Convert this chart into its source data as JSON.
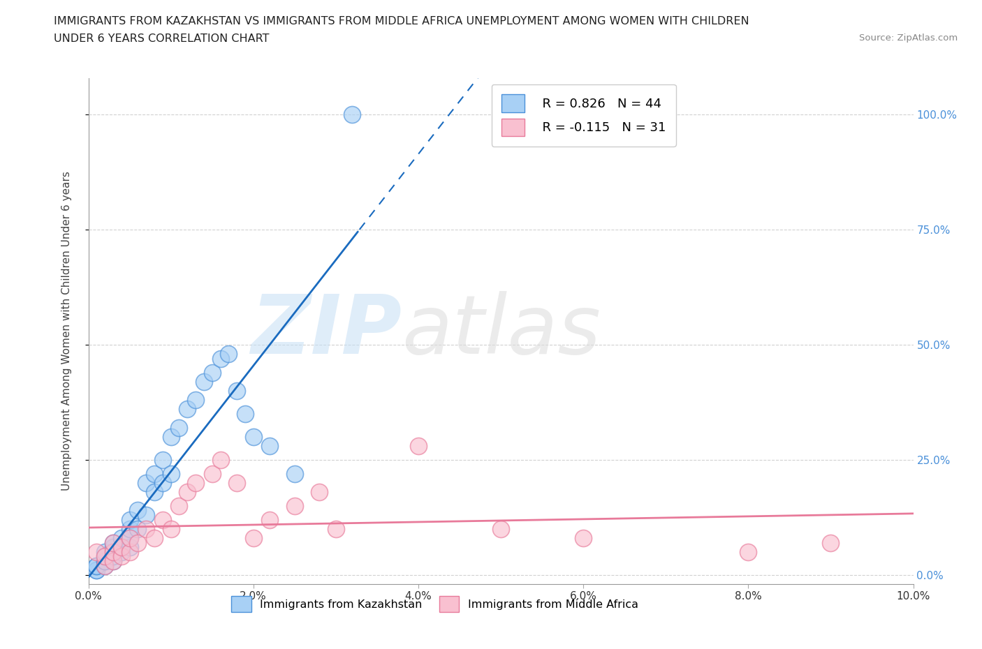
{
  "title_line1": "IMMIGRANTS FROM KAZAKHSTAN VS IMMIGRANTS FROM MIDDLE AFRICA UNEMPLOYMENT AMONG WOMEN WITH CHILDREN",
  "title_line2": "UNDER 6 YEARS CORRELATION CHART",
  "source": "Source: ZipAtlas.com",
  "ylabel": "Unemployment Among Women with Children Under 6 years",
  "ylabel_right_labels": [
    "0.0%",
    "25.0%",
    "50.0%",
    "75.0%",
    "100.0%"
  ],
  "ylabel_right_values": [
    0.0,
    0.25,
    0.5,
    0.75,
    1.0
  ],
  "xlim": [
    0.0,
    0.1
  ],
  "ylim": [
    -0.02,
    1.08
  ],
  "x_tick_positions": [
    0.0,
    0.02,
    0.04,
    0.06,
    0.08,
    0.1
  ],
  "x_tick_labels": [
    "0.0%",
    "2.0%",
    "4.0%",
    "6.0%",
    "8.0%",
    "10.0%"
  ],
  "legend_r1": "R = 0.826",
  "legend_n1": "N = 44",
  "legend_r2": "R = -0.115",
  "legend_n2": "N = 31",
  "color_kaz_fill": "#A8D0F5",
  "color_kaz_edge": "#4A90D9",
  "color_mid_fill": "#F9C0D0",
  "color_mid_edge": "#E87A9A",
  "color_kaz_line": "#1A6BBF",
  "color_mid_line": "#E87A9A",
  "kaz_x": [
    0.001,
    0.001,
    0.001,
    0.001,
    0.002,
    0.002,
    0.002,
    0.002,
    0.002,
    0.003,
    0.003,
    0.003,
    0.003,
    0.003,
    0.004,
    0.004,
    0.004,
    0.005,
    0.005,
    0.005,
    0.005,
    0.006,
    0.006,
    0.007,
    0.007,
    0.008,
    0.008,
    0.009,
    0.009,
    0.01,
    0.01,
    0.011,
    0.012,
    0.013,
    0.014,
    0.015,
    0.016,
    0.017,
    0.018,
    0.019,
    0.02,
    0.022,
    0.025,
    0.032
  ],
  "kaz_y": [
    0.01,
    0.01,
    0.02,
    0.02,
    0.02,
    0.03,
    0.03,
    0.04,
    0.05,
    0.03,
    0.04,
    0.05,
    0.06,
    0.07,
    0.05,
    0.06,
    0.08,
    0.06,
    0.08,
    0.1,
    0.12,
    0.1,
    0.14,
    0.13,
    0.2,
    0.18,
    0.22,
    0.2,
    0.25,
    0.22,
    0.3,
    0.32,
    0.36,
    0.38,
    0.42,
    0.44,
    0.47,
    0.48,
    0.4,
    0.35,
    0.3,
    0.28,
    0.22,
    1.0
  ],
  "mid_x": [
    0.001,
    0.002,
    0.002,
    0.003,
    0.003,
    0.003,
    0.004,
    0.004,
    0.005,
    0.005,
    0.006,
    0.007,
    0.008,
    0.009,
    0.01,
    0.011,
    0.012,
    0.013,
    0.015,
    0.016,
    0.018,
    0.02,
    0.022,
    0.025,
    0.028,
    0.03,
    0.04,
    0.05,
    0.06,
    0.08,
    0.09
  ],
  "mid_y": [
    0.05,
    0.02,
    0.04,
    0.03,
    0.05,
    0.07,
    0.04,
    0.06,
    0.05,
    0.08,
    0.07,
    0.1,
    0.08,
    0.12,
    0.1,
    0.15,
    0.18,
    0.2,
    0.22,
    0.25,
    0.2,
    0.08,
    0.12,
    0.15,
    0.18,
    0.1,
    0.28,
    0.1,
    0.08,
    0.05,
    0.07
  ]
}
